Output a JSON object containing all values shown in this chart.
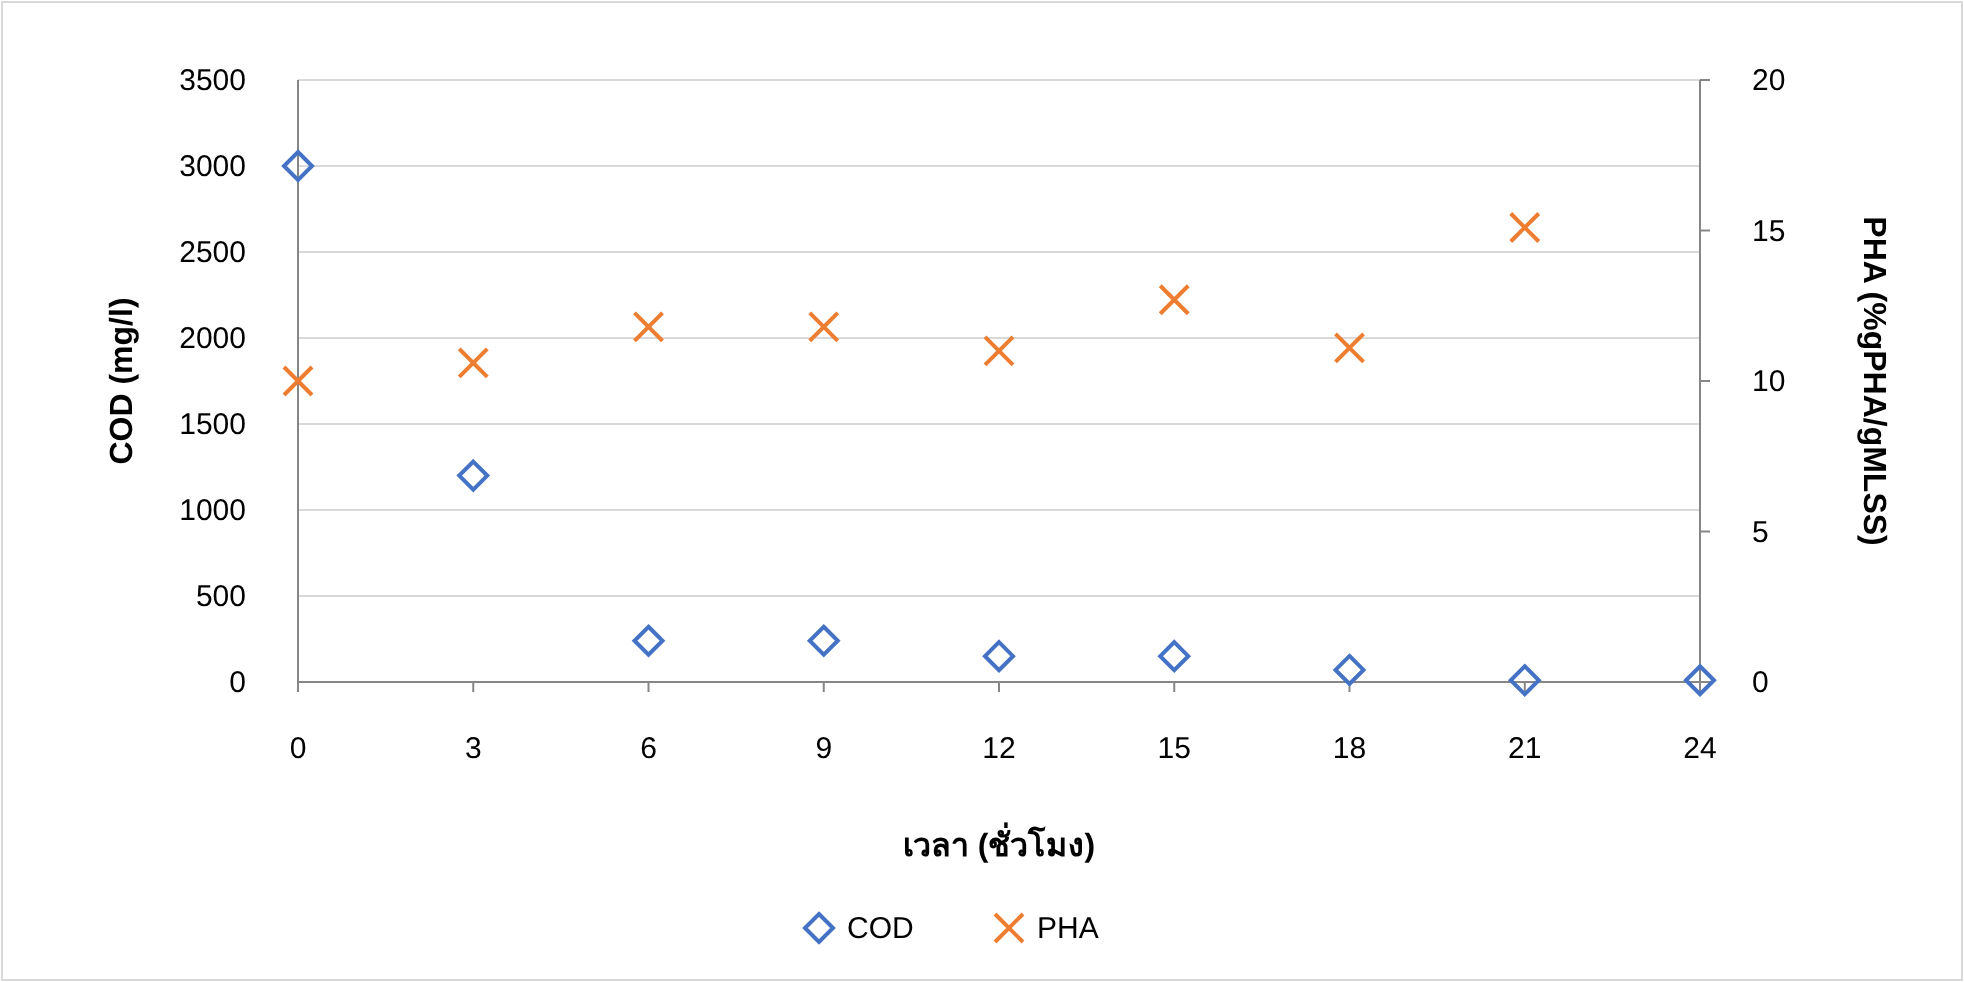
{
  "chart_data": {
    "type": "scatter",
    "xlabel": "เวลา (ชั่วโมง)",
    "ylabel": "COD (mg/l)",
    "y2label": "PHA (%gPHA/gMLSS)",
    "x": [
      0,
      3,
      6,
      9,
      12,
      15,
      18,
      21,
      24
    ],
    "xlim": [
      0,
      24
    ],
    "xticks": [
      0,
      3,
      6,
      9,
      12,
      15,
      18,
      21,
      24
    ],
    "ylim": [
      0,
      3500
    ],
    "yticks": [
      0,
      500,
      1000,
      1500,
      2000,
      2500,
      3000,
      3500
    ],
    "y2lim": [
      0,
      20
    ],
    "y2ticks": [
      0,
      5,
      10,
      15,
      20
    ],
    "grid": "y",
    "legend": "bottom",
    "series": [
      {
        "name": "COD",
        "color": "#4472c4",
        "marker": "diamond",
        "values": [
          3000,
          1200,
          240,
          240,
          150,
          150,
          70,
          10,
          10
        ]
      },
      {
        "name": "PHA",
        "color": "#ed7d31",
        "marker": "cross",
        "axis": "y2",
        "values": [
          10.0,
          10.6,
          11.8,
          11.8,
          11.0,
          12.7,
          11.1,
          15.1,
          null
        ]
      }
    ]
  }
}
